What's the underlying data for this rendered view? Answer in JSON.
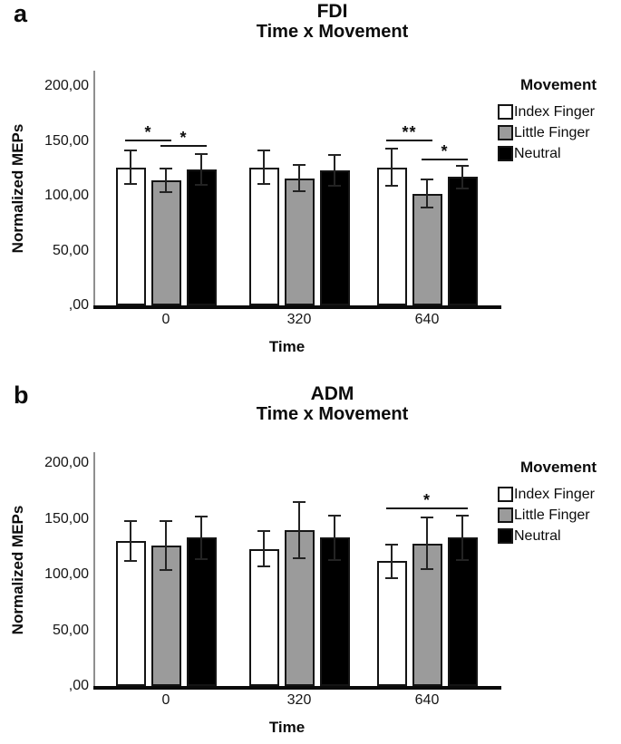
{
  "figure_type": "two-panel grouped bar figure",
  "chart_data": [
    {
      "type": "bar",
      "panel_label": "a",
      "title": "FDI",
      "subtitle": "Time x Movement",
      "xlabel": "Time",
      "ylabel": "Normalized MEPs",
      "legend_title": "Movement",
      "legend_position": "right-top",
      "grid": false,
      "ylim": [
        0,
        200
      ],
      "yticks": [
        {
          "value": 200,
          "label": "200,00"
        },
        {
          "value": 150,
          "label": "150,00"
        },
        {
          "value": 100,
          "label": "100,00"
        },
        {
          "value": 50,
          "label": "50,00"
        },
        {
          "value": 0,
          "label": ",00"
        }
      ],
      "categories": [
        "0",
        "320",
        "640"
      ],
      "series": [
        {
          "name": "Index Finger",
          "color": "#ffffff",
          "values": [
            126,
            126,
            126
          ],
          "errors": [
            15,
            15,
            17
          ]
        },
        {
          "name": "Little Finger",
          "color": "#9b9b9b",
          "values": [
            114,
            116,
            102
          ],
          "errors": [
            11,
            12,
            13
          ]
        },
        {
          "name": "Neutral",
          "color": "#000000",
          "values": [
            124,
            123,
            117
          ],
          "errors": [
            14,
            14,
            10
          ]
        }
      ],
      "significance": [
        {
          "category_index": 0,
          "from_series": 0,
          "to_series": 1,
          "label": "*",
          "y_value": 151
        },
        {
          "category_index": 0,
          "from_series": 1,
          "to_series": 2,
          "label": "*",
          "y_value": 146
        },
        {
          "category_index": 2,
          "from_series": 0,
          "to_series": 1,
          "label": "**",
          "y_value": 151
        },
        {
          "category_index": 2,
          "from_series": 1,
          "to_series": 2,
          "label": "*",
          "y_value": 134
        }
      ]
    },
    {
      "type": "bar",
      "panel_label": "b",
      "title": "ADM",
      "subtitle": "Time x Movement",
      "xlabel": "Time",
      "ylabel": "Normalized MEPs",
      "legend_title": "Movement",
      "legend_position": "right-top",
      "grid": false,
      "ylim": [
        0,
        200
      ],
      "yticks": [
        {
          "value": 200,
          "label": "200,00"
        },
        {
          "value": 150,
          "label": "150,00"
        },
        {
          "value": 100,
          "label": "100,00"
        },
        {
          "value": 50,
          "label": "50,00"
        },
        {
          "value": 0,
          "label": ",00"
        }
      ],
      "categories": [
        "0",
        "320",
        "640"
      ],
      "series": [
        {
          "name": "Index Finger",
          "color": "#ffffff",
          "values": [
            130,
            123,
            112
          ],
          "errors": [
            18,
            16,
            15
          ]
        },
        {
          "name": "Little Finger",
          "color": "#9b9b9b",
          "values": [
            126,
            140,
            128
          ],
          "errors": [
            22,
            25,
            23
          ]
        },
        {
          "name": "Neutral",
          "color": "#000000",
          "values": [
            133,
            133,
            133
          ],
          "errors": [
            19,
            20,
            20
          ]
        }
      ],
      "significance": [
        {
          "category_index": 2,
          "from_series": 0,
          "to_series": 2,
          "label": "*",
          "y_value": 160
        }
      ]
    }
  ],
  "colors": {
    "bar_outline": "#141414",
    "error_bar": "#232323",
    "y_axis_line": "#8f8f8f",
    "x_axis_line": "#0a0a0a",
    "background": "#ffffff"
  }
}
